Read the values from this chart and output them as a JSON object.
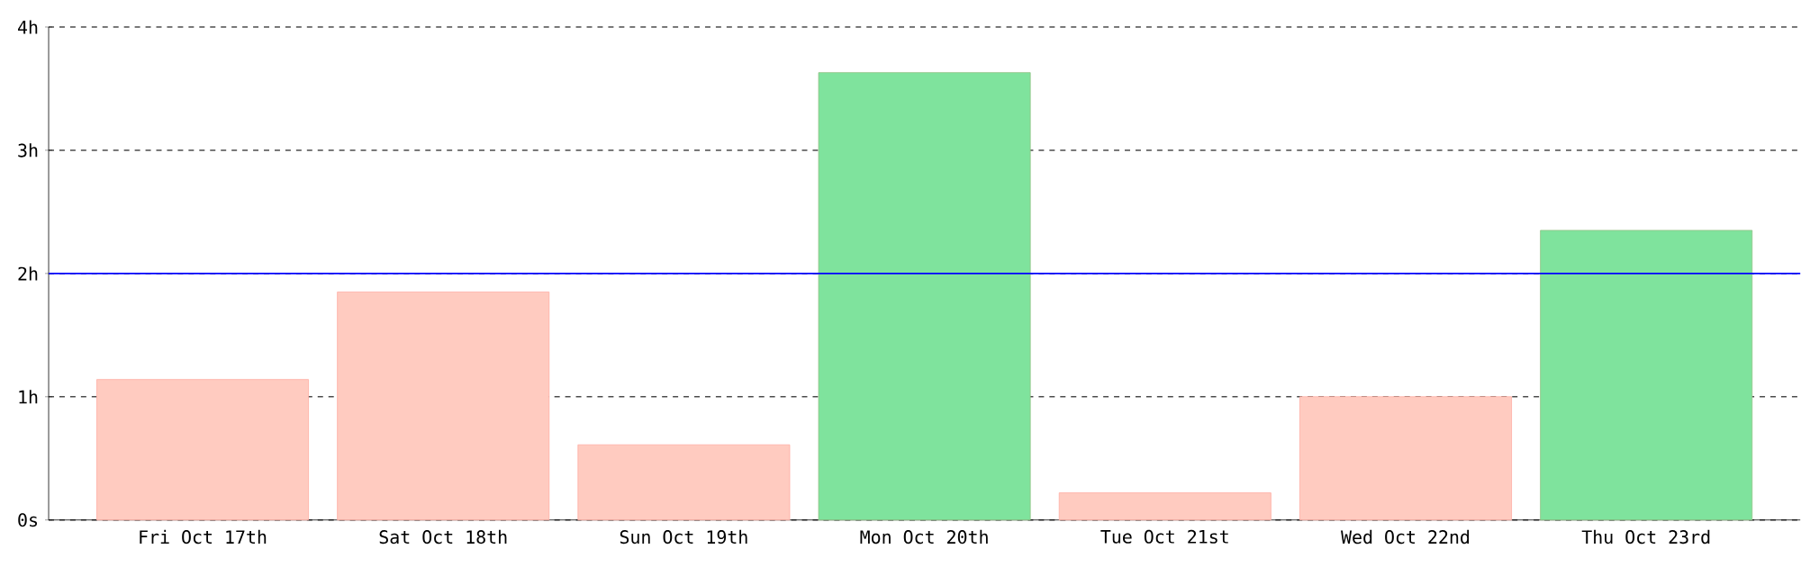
{
  "chart_data": {
    "type": "bar",
    "categories": [
      "Fri Oct 17th",
      "Sat Oct 18th",
      "Sun Oct 19th",
      "Mon Oct 20th",
      "Tue Oct 21st",
      "Wed Oct 22nd",
      "Thu Oct 23rd"
    ],
    "values": [
      1.14,
      1.85,
      0.61,
      3.63,
      0.22,
      1.0,
      2.35
    ],
    "colors": [
      "#ffcbc0",
      "#ffcbc0",
      "#ffcbc0",
      "#7fe39d",
      "#ffcbc0",
      "#ffcbc0",
      "#7fe39d"
    ],
    "ylim": [
      0,
      4
    ],
    "yticks": [
      {
        "value": 0,
        "label": "0s"
      },
      {
        "value": 1,
        "label": "1h"
      },
      {
        "value": 2,
        "label": "2h"
      },
      {
        "value": 3,
        "label": "3h"
      },
      {
        "value": 4,
        "label": "4h"
      }
    ],
    "grid": "y",
    "ref_lines": [
      {
        "axis": "y",
        "value": 2,
        "color": "#0000ff",
        "line_style": "solid"
      }
    ]
  }
}
